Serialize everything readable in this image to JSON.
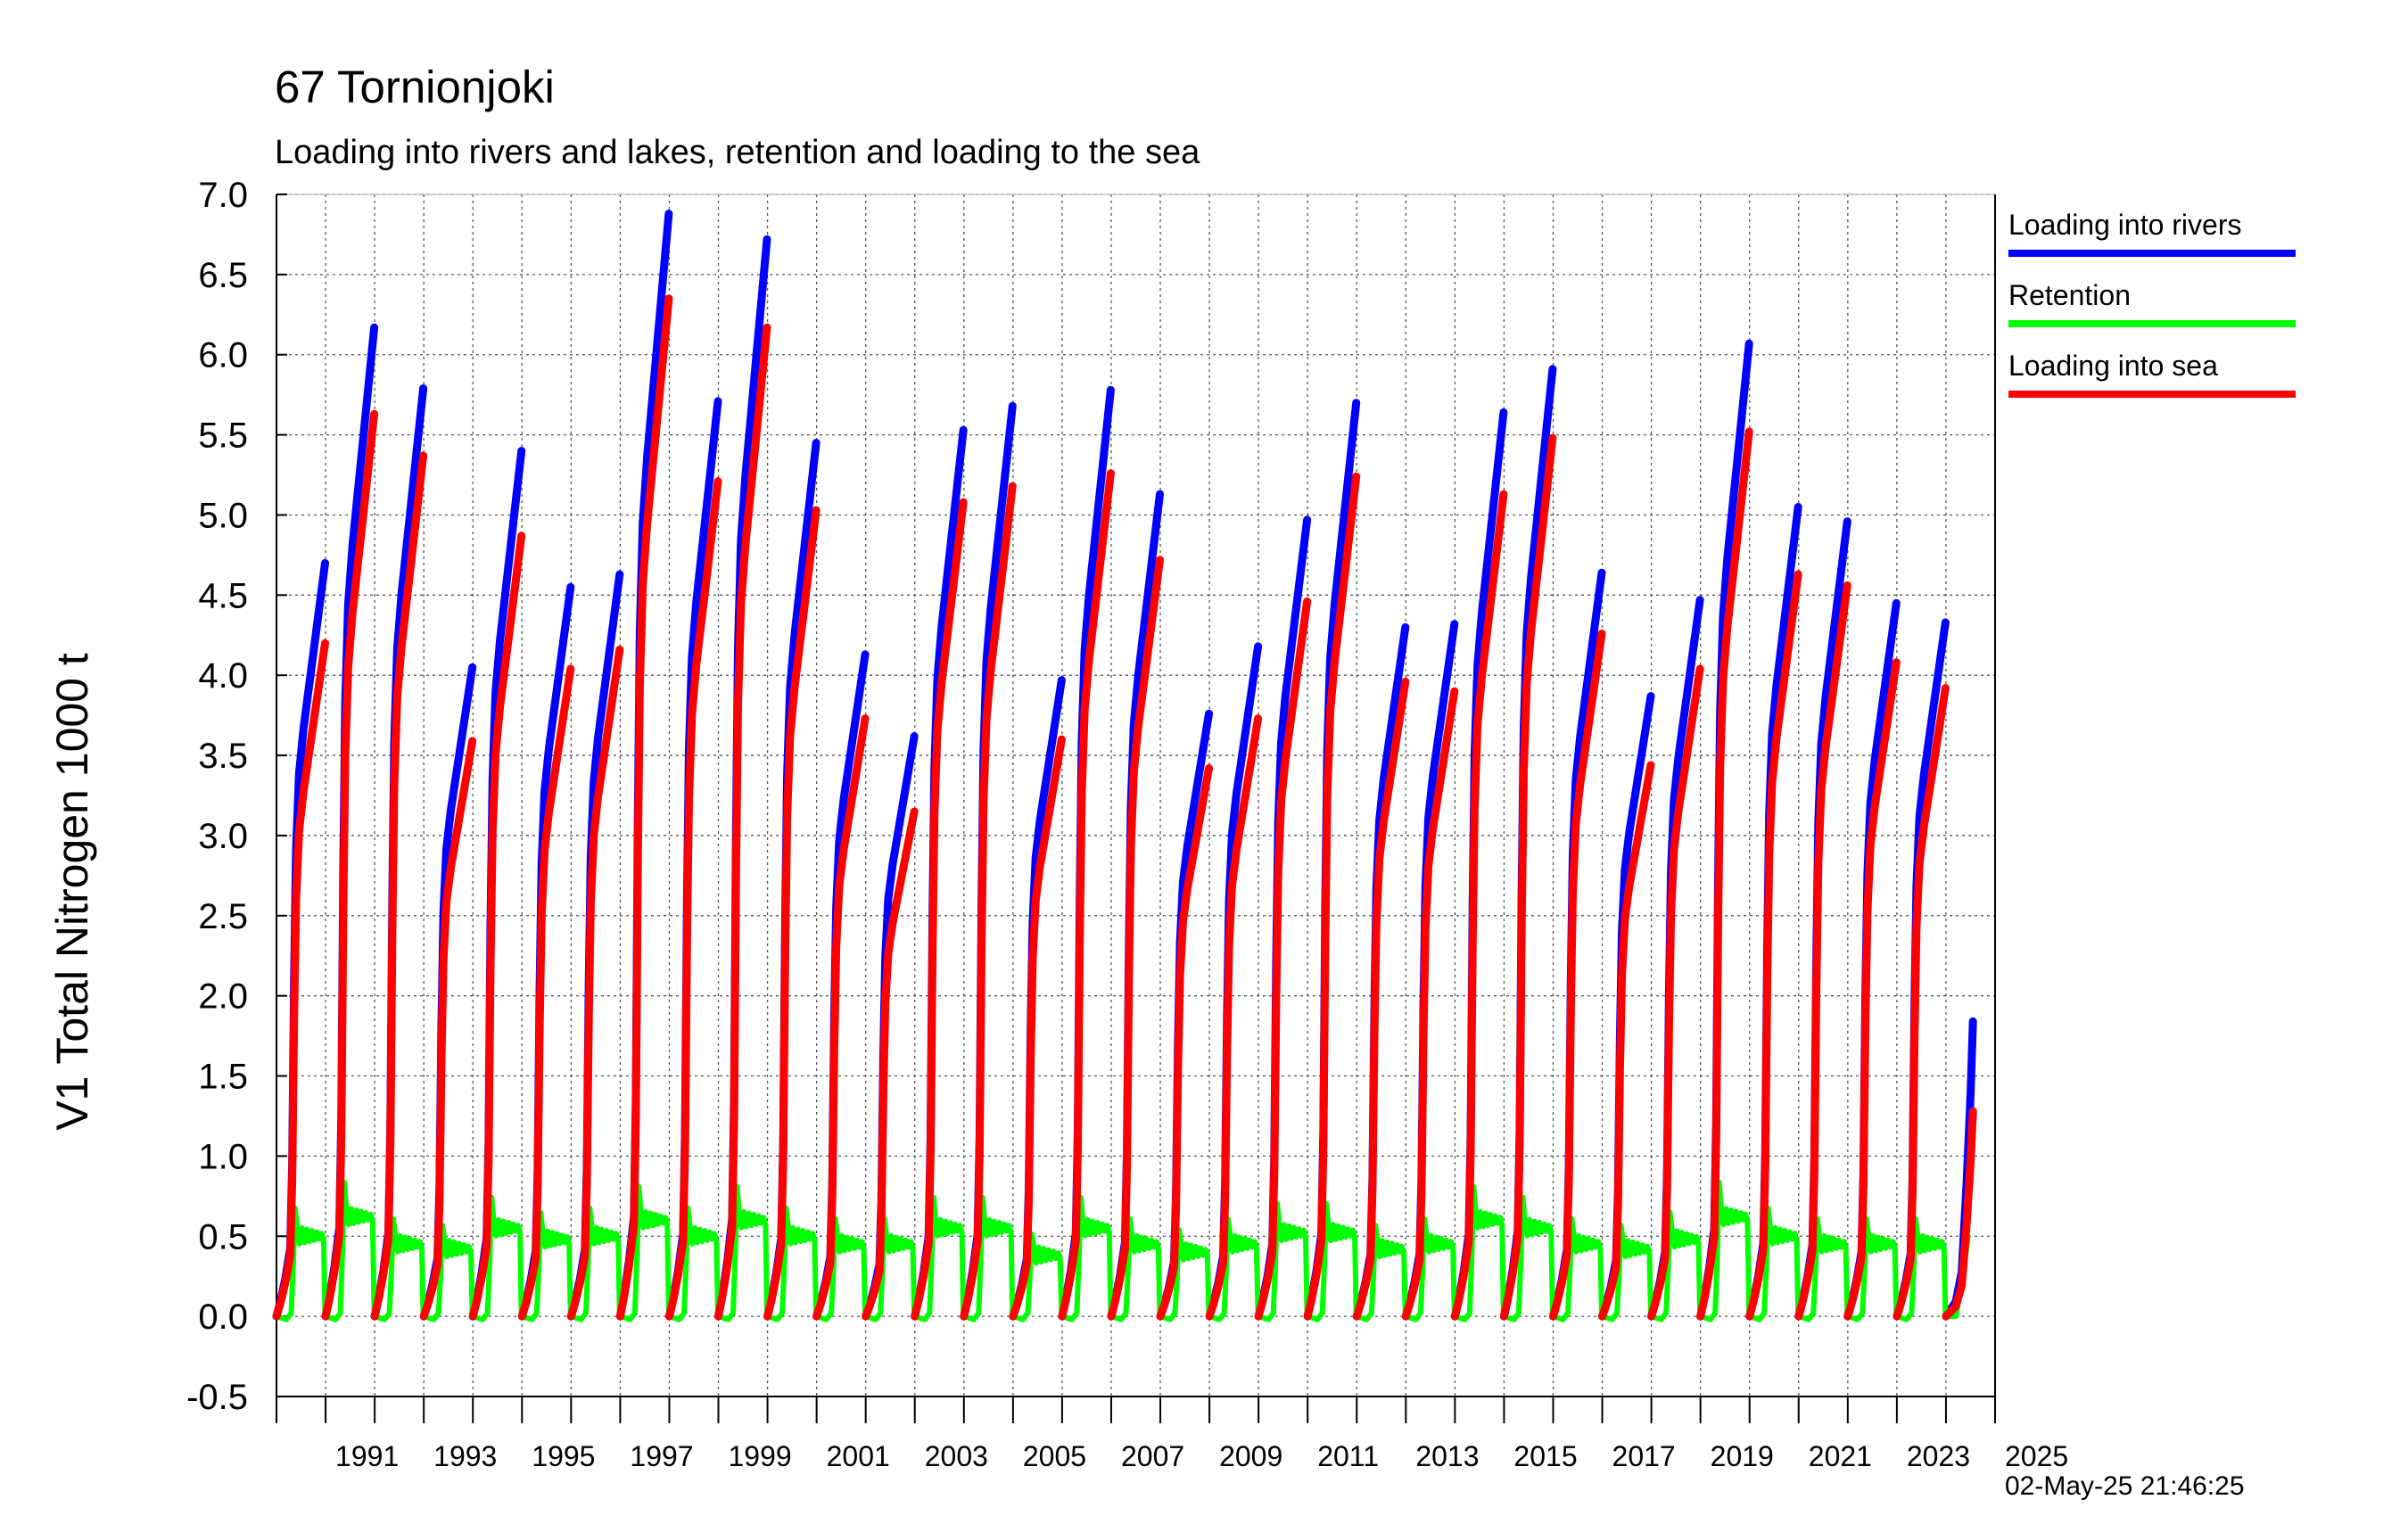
{
  "chart_data": {
    "type": "line",
    "title": "67 Tornionjoki",
    "subtitle": "Loading into rivers and lakes, retention and loading to the sea",
    "xlabel": "",
    "ylabel": "V1 Total Nitrogen 1000 t",
    "xlim": [
      1990,
      2025
    ],
    "ylim": [
      -0.5,
      7.0
    ],
    "y_ticks": [
      "-0.5",
      "0.0",
      "0.5",
      "1.0",
      "1.5",
      "2.0",
      "2.5",
      "3.0",
      "3.5",
      "4.0",
      "4.5",
      "5.0",
      "5.5",
      "6.0",
      "6.5",
      "7.0"
    ],
    "x_tick_labels": [
      "1991",
      "1993",
      "1995",
      "1997",
      "1999",
      "2001",
      "2003",
      "2005",
      "2007",
      "2009",
      "2011",
      "2013",
      "2015",
      "2017",
      "2019",
      "2021",
      "2023",
      "2025"
    ],
    "grid": true,
    "legend_position": "right",
    "annual_year_start": [
      1990,
      1991,
      1992,
      1993,
      1994,
      1995,
      1996,
      1997,
      1998,
      1999,
      2000,
      2001,
      2002,
      2003,
      2004,
      2005,
      2006,
      2007,
      2008,
      2009,
      2010,
      2011,
      2012,
      2013,
      2014,
      2015,
      2016,
      2017,
      2018,
      2019,
      2020,
      2021,
      2022,
      2023,
      2024,
      2025
    ],
    "series": [
      {
        "name": "Loading into rivers",
        "color": "#0000ff",
        "annual_total": [
          4.7,
          6.17,
          5.79,
          4.05,
          5.4,
          4.55,
          4.63,
          6.88,
          5.71,
          6.72,
          5.45,
          4.13,
          3.62,
          5.53,
          5.68,
          3.97,
          5.78,
          5.13,
          3.76,
          4.18,
          4.97,
          5.7,
          4.3,
          4.32,
          5.64,
          5.91,
          4.64,
          3.87,
          4.47,
          6.07,
          5.05,
          4.96,
          4.45,
          4.33,
          1.84,
          0.0
        ]
      },
      {
        "name": "Retention",
        "color": "#00ff00",
        "summer_level": [
          0.5,
          0.62,
          0.45,
          0.42,
          0.55,
          0.48,
          0.5,
          0.6,
          0.5,
          0.6,
          0.5,
          0.45,
          0.45,
          0.55,
          0.55,
          0.38,
          0.55,
          0.45,
          0.4,
          0.45,
          0.52,
          0.52,
          0.42,
          0.45,
          0.6,
          0.55,
          0.45,
          0.42,
          0.48,
          0.62,
          0.5,
          0.45,
          0.45,
          0.45,
          0.5,
          0.0
        ]
      },
      {
        "name": "Loading into sea",
        "color": "#ff0000",
        "annual_total": [
          4.2,
          5.63,
          5.37,
          3.59,
          4.87,
          4.04,
          4.16,
          6.35,
          5.21,
          6.17,
          5.03,
          3.73,
          3.15,
          5.08,
          5.18,
          3.6,
          5.26,
          4.72,
          3.42,
          3.73,
          4.46,
          5.24,
          3.96,
          3.9,
          5.13,
          5.48,
          4.26,
          3.44,
          4.04,
          5.52,
          4.63,
          4.56,
          4.08,
          3.92,
          1.28,
          0.0
        ]
      }
    ]
  },
  "timestamp": "02-May-25 21:46:25"
}
